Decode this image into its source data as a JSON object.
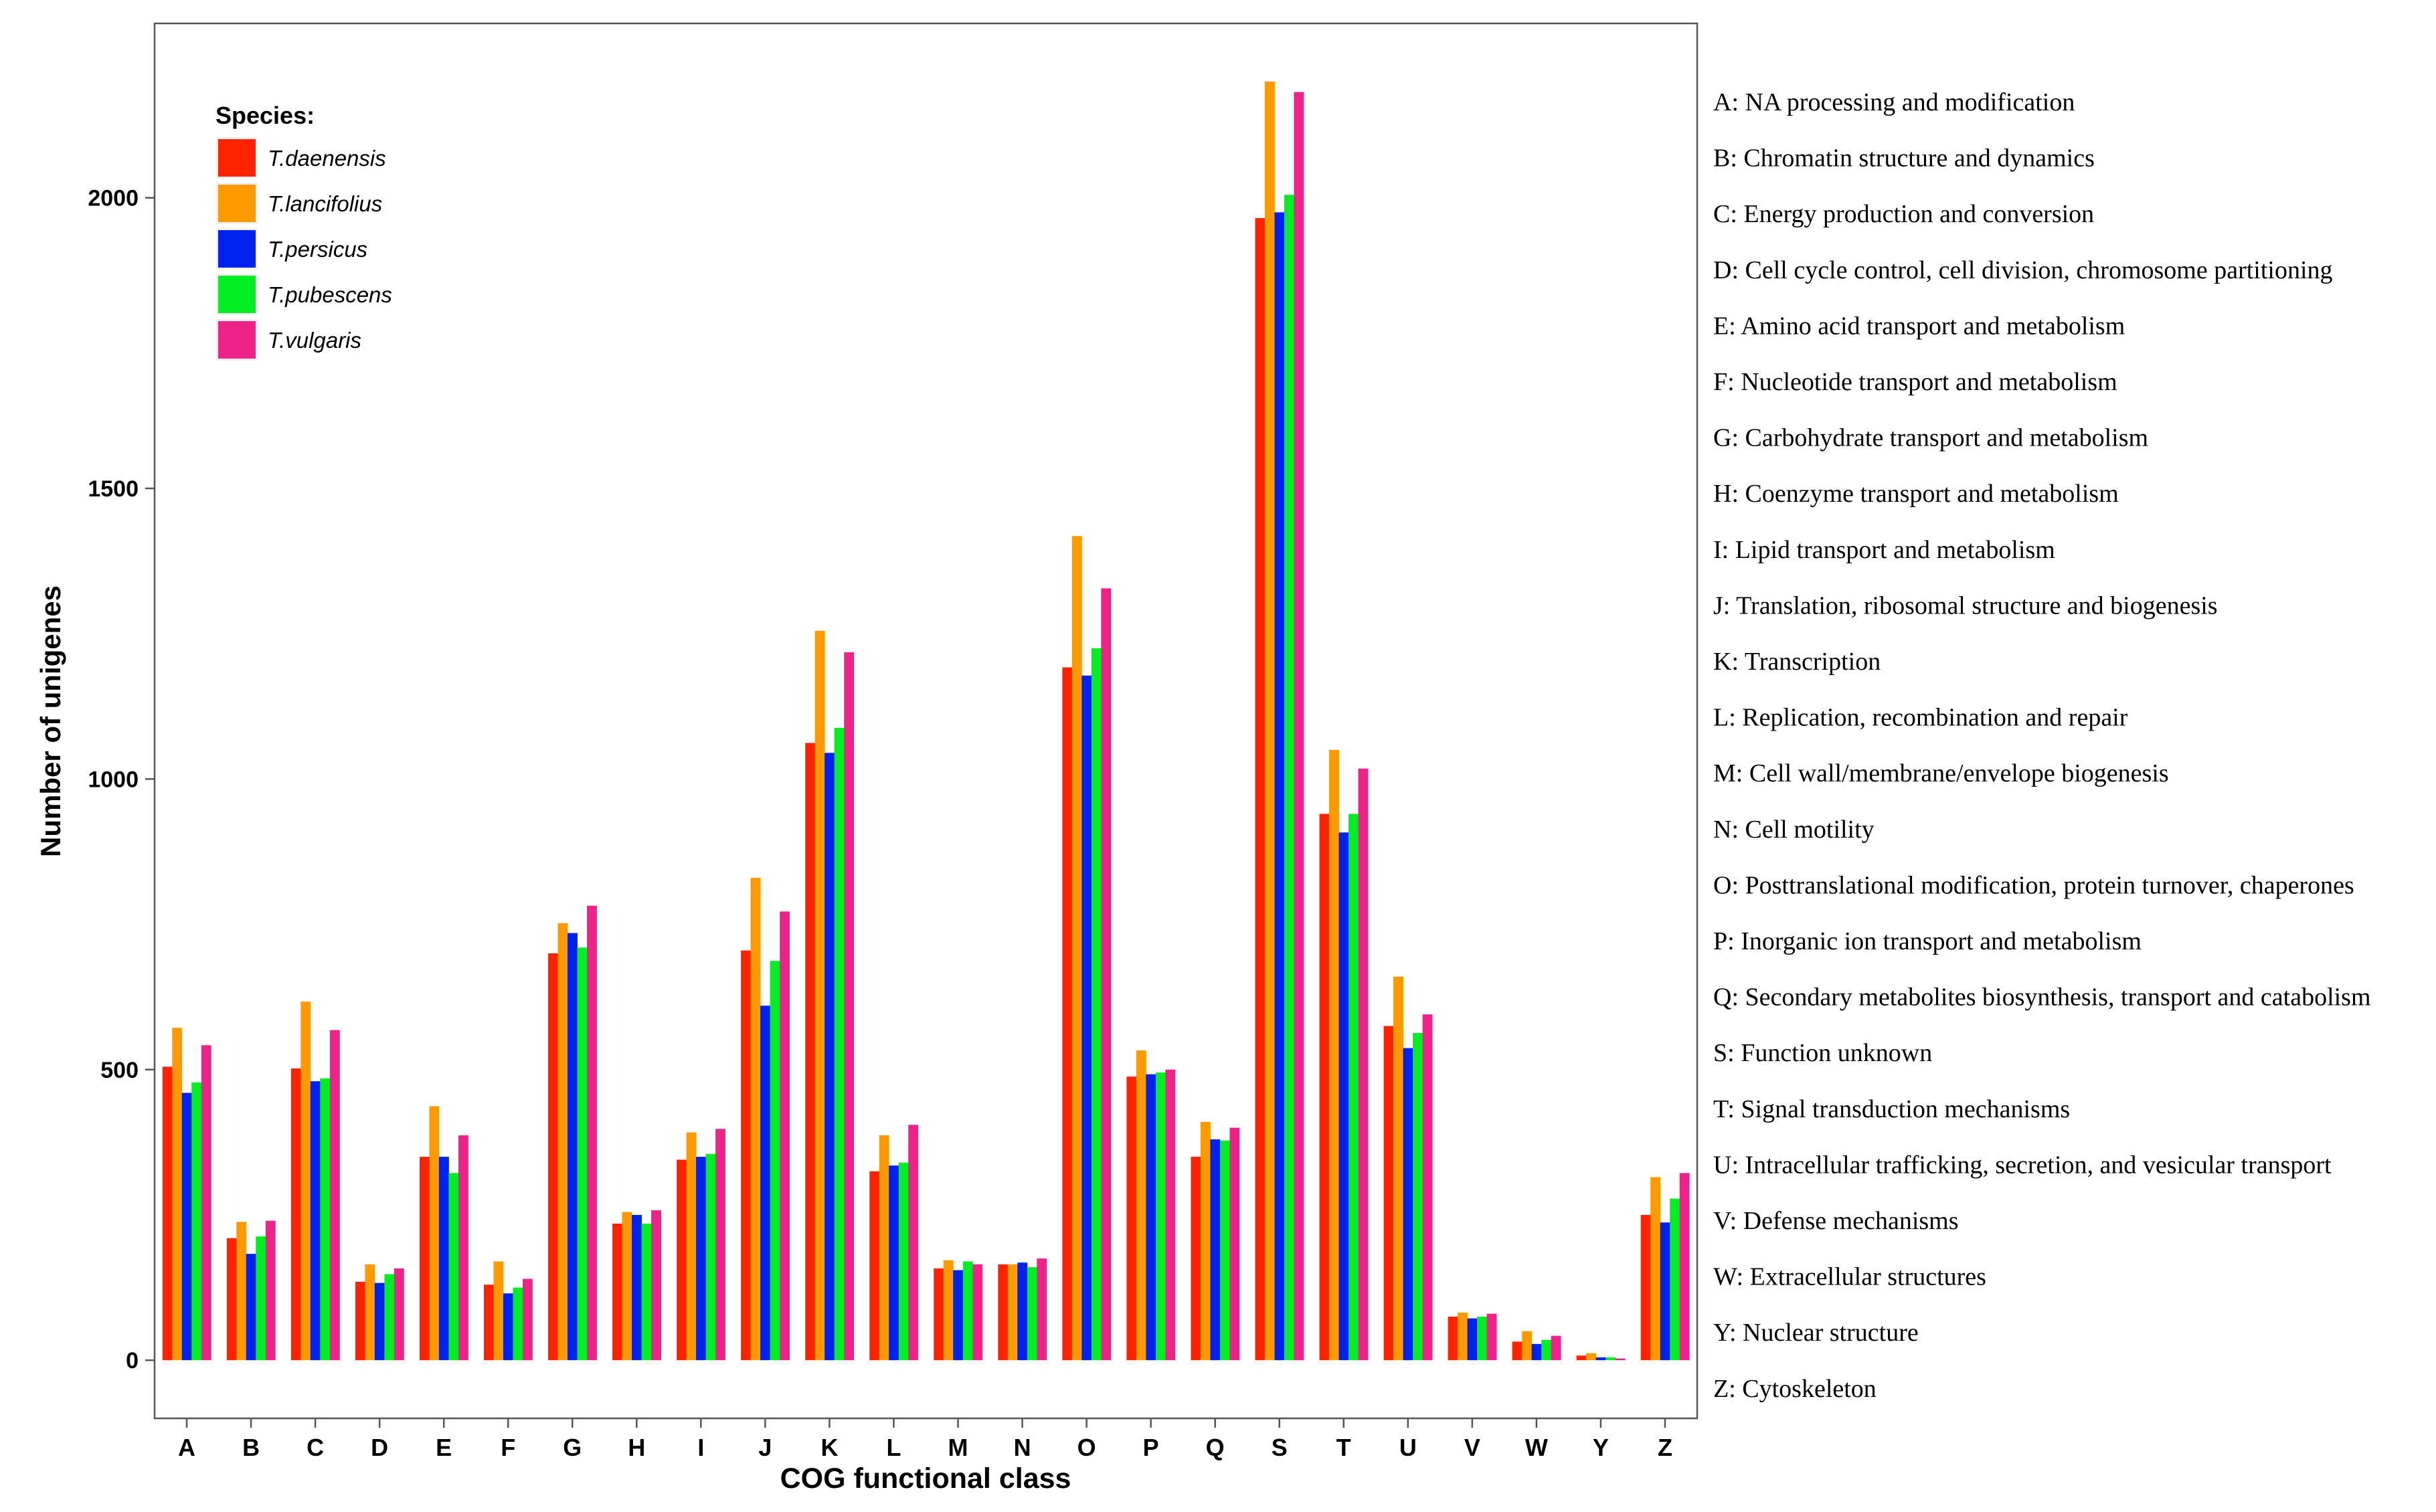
{
  "chart_data": {
    "type": "bar",
    "title": "",
    "xlabel": "COG functional class",
    "ylabel": "Number of unigenes",
    "ylim": [
      -100,
      2300
    ],
    "yticks": [
      0,
      500,
      1000,
      1500,
      2000
    ],
    "grid": false,
    "legend": {
      "title": "Species:",
      "placement": "top-left"
    },
    "categories": [
      "A",
      "B",
      "C",
      "D",
      "E",
      "F",
      "G",
      "H",
      "I",
      "J",
      "K",
      "L",
      "M",
      "N",
      "O",
      "P",
      "Q",
      "S",
      "T",
      "U",
      "V",
      "W",
      "Y",
      "Z"
    ],
    "series": [
      {
        "name": "T.daenensis",
        "color": "#FF2200",
        "values": [
          505,
          210,
          502,
          135,
          350,
          130,
          700,
          235,
          345,
          705,
          1062,
          325,
          158,
          165,
          1192,
          488,
          350,
          1965,
          940,
          575,
          75,
          32,
          8,
          250
        ]
      },
      {
        "name": "T.lancifolius",
        "color": "#FF9900",
        "values": [
          572,
          238,
          617,
          165,
          437,
          170,
          752,
          255,
          392,
          830,
          1255,
          387,
          172,
          165,
          1418,
          533,
          410,
          2200,
          1050,
          660,
          82,
          50,
          12,
          315
        ]
      },
      {
        "name": "T.persicus",
        "color": "#0022EE",
        "values": [
          460,
          183,
          480,
          133,
          350,
          115,
          735,
          250,
          350,
          610,
          1045,
          335,
          155,
          168,
          1178,
          492,
          380,
          1975,
          908,
          537,
          72,
          28,
          5,
          237
        ]
      },
      {
        "name": "T.pubescens",
        "color": "#00EE22",
        "values": [
          478,
          213,
          485,
          148,
          322,
          125,
          710,
          235,
          355,
          687,
          1088,
          340,
          170,
          160,
          1225,
          495,
          378,
          2005,
          940,
          563,
          75,
          35,
          5,
          278
        ]
      },
      {
        "name": "T.vulgaris",
        "color": "#EE2288",
        "values": [
          542,
          240,
          568,
          158,
          387,
          140,
          782,
          258,
          398,
          772,
          1218,
          405,
          165,
          175,
          1328,
          500,
          400,
          2182,
          1018,
          595,
          80,
          42,
          3,
          322
        ]
      }
    ]
  },
  "key_definitions": [
    "A: NA processing and modification",
    "B: Chromatin structure and dynamics",
    "C: Energy production and conversion",
    "D: Cell cycle control, cell division, chromosome partitioning",
    "E: Amino acid transport and metabolism",
    "F: Nucleotide transport and metabolism",
    "G: Carbohydrate transport and metabolism",
    "H: Coenzyme transport and metabolism",
    "I: Lipid transport and metabolism",
    "J: Translation, ribosomal structure and biogenesis",
    "K: Transcription",
    "L: Replication, recombination and repair",
    "M: Cell wall/membrane/envelope biogenesis",
    "N: Cell motility",
    "O: Posttranslational modification, protein turnover, chaperones",
    "P: Inorganic ion transport and metabolism",
    "Q: Secondary metabolites biosynthesis, transport and catabolism",
    "S: Function unknown",
    "T: Signal transduction mechanisms",
    "U: Intracellular trafficking, secretion, and vesicular transport",
    "V: Defense mechanisms",
    "W: Extracellular structures",
    "Y: Nuclear structure",
    "Z: Cytoskeleton"
  ]
}
